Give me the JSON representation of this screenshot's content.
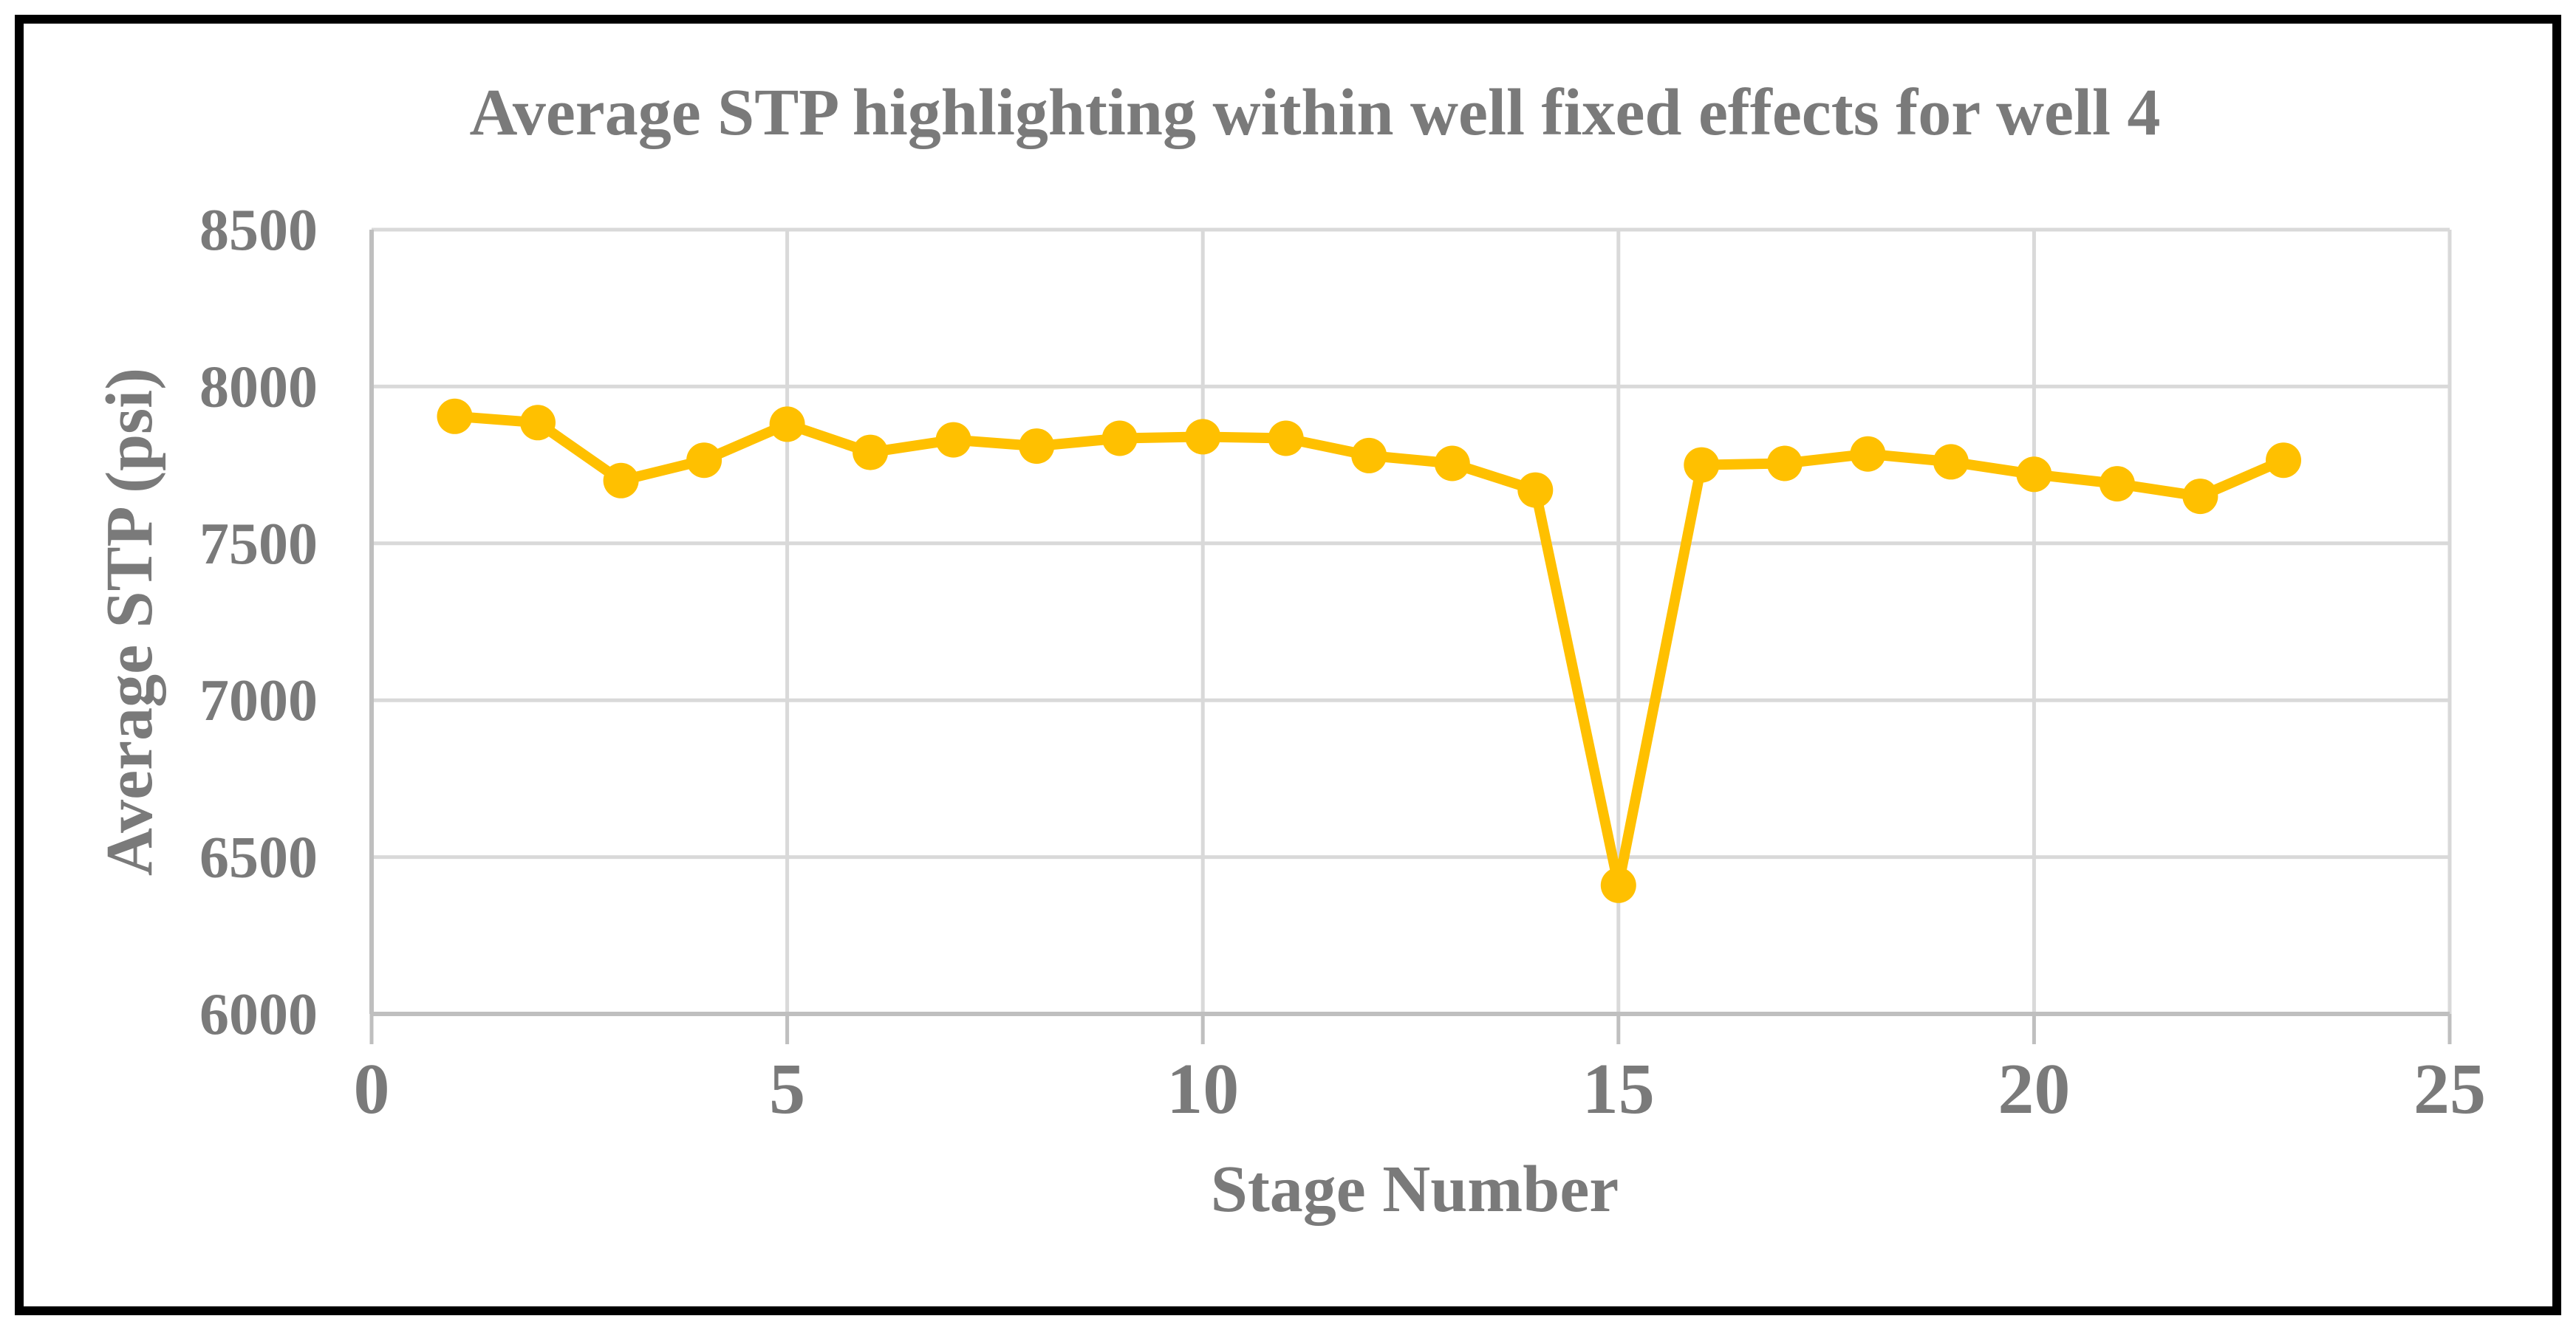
{
  "title": {
    "text": "Average STP highlighting within well fixed effects for well 4"
  },
  "colors": {
    "series": "#FFC000",
    "gridline": "#D9D9D9",
    "axis_line": "#BFBFBF",
    "text": "#7A7A7A",
    "frame_border": "#000000",
    "background": "#FFFFFF"
  },
  "chart_data": {
    "type": "line",
    "title": "Average STP highlighting within well fixed effects for well 4",
    "xlabel": "Stage Number",
    "ylabel": "Average STP (psi)",
    "x": [
      1,
      2,
      3,
      4,
      5,
      6,
      7,
      8,
      9,
      10,
      11,
      12,
      13,
      14,
      15,
      16,
      17,
      18,
      19,
      20,
      21,
      22,
      23
    ],
    "values": [
      7905,
      7885,
      7700,
      7765,
      7880,
      7790,
      7830,
      7810,
      7835,
      7840,
      7835,
      7780,
      7755,
      7670,
      6410,
      7750,
      7755,
      7785,
      7760,
      7720,
      7690,
      7650,
      7765
    ],
    "xlim": [
      0,
      25
    ],
    "ylim": [
      6000,
      8500
    ],
    "x_ticks": [
      0,
      5,
      10,
      15,
      20,
      25
    ],
    "y_ticks": [
      8500,
      8000,
      7500,
      7000,
      6500,
      6000
    ],
    "grid": true,
    "legend": "none",
    "marker": "circle",
    "series_color": "#FFC000"
  }
}
